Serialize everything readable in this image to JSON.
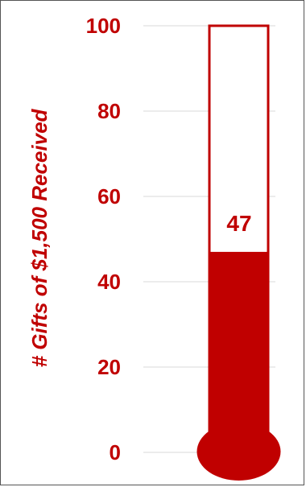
{
  "chart_data": {
    "type": "bar",
    "title": "",
    "categories": [
      ""
    ],
    "values": [
      47
    ],
    "ylabel": "# Gifts of $1,500 Received",
    "xlabel": "",
    "ylim": [
      0,
      100
    ],
    "yticks": [
      "0",
      "20",
      "40",
      "60",
      "80",
      "100"
    ],
    "data_label": "47",
    "grid": true,
    "legend": "none"
  },
  "colors": {
    "fill": "#c00000",
    "outline": "#c00000",
    "text": "#c00000",
    "grid": "#d9d9d9"
  }
}
